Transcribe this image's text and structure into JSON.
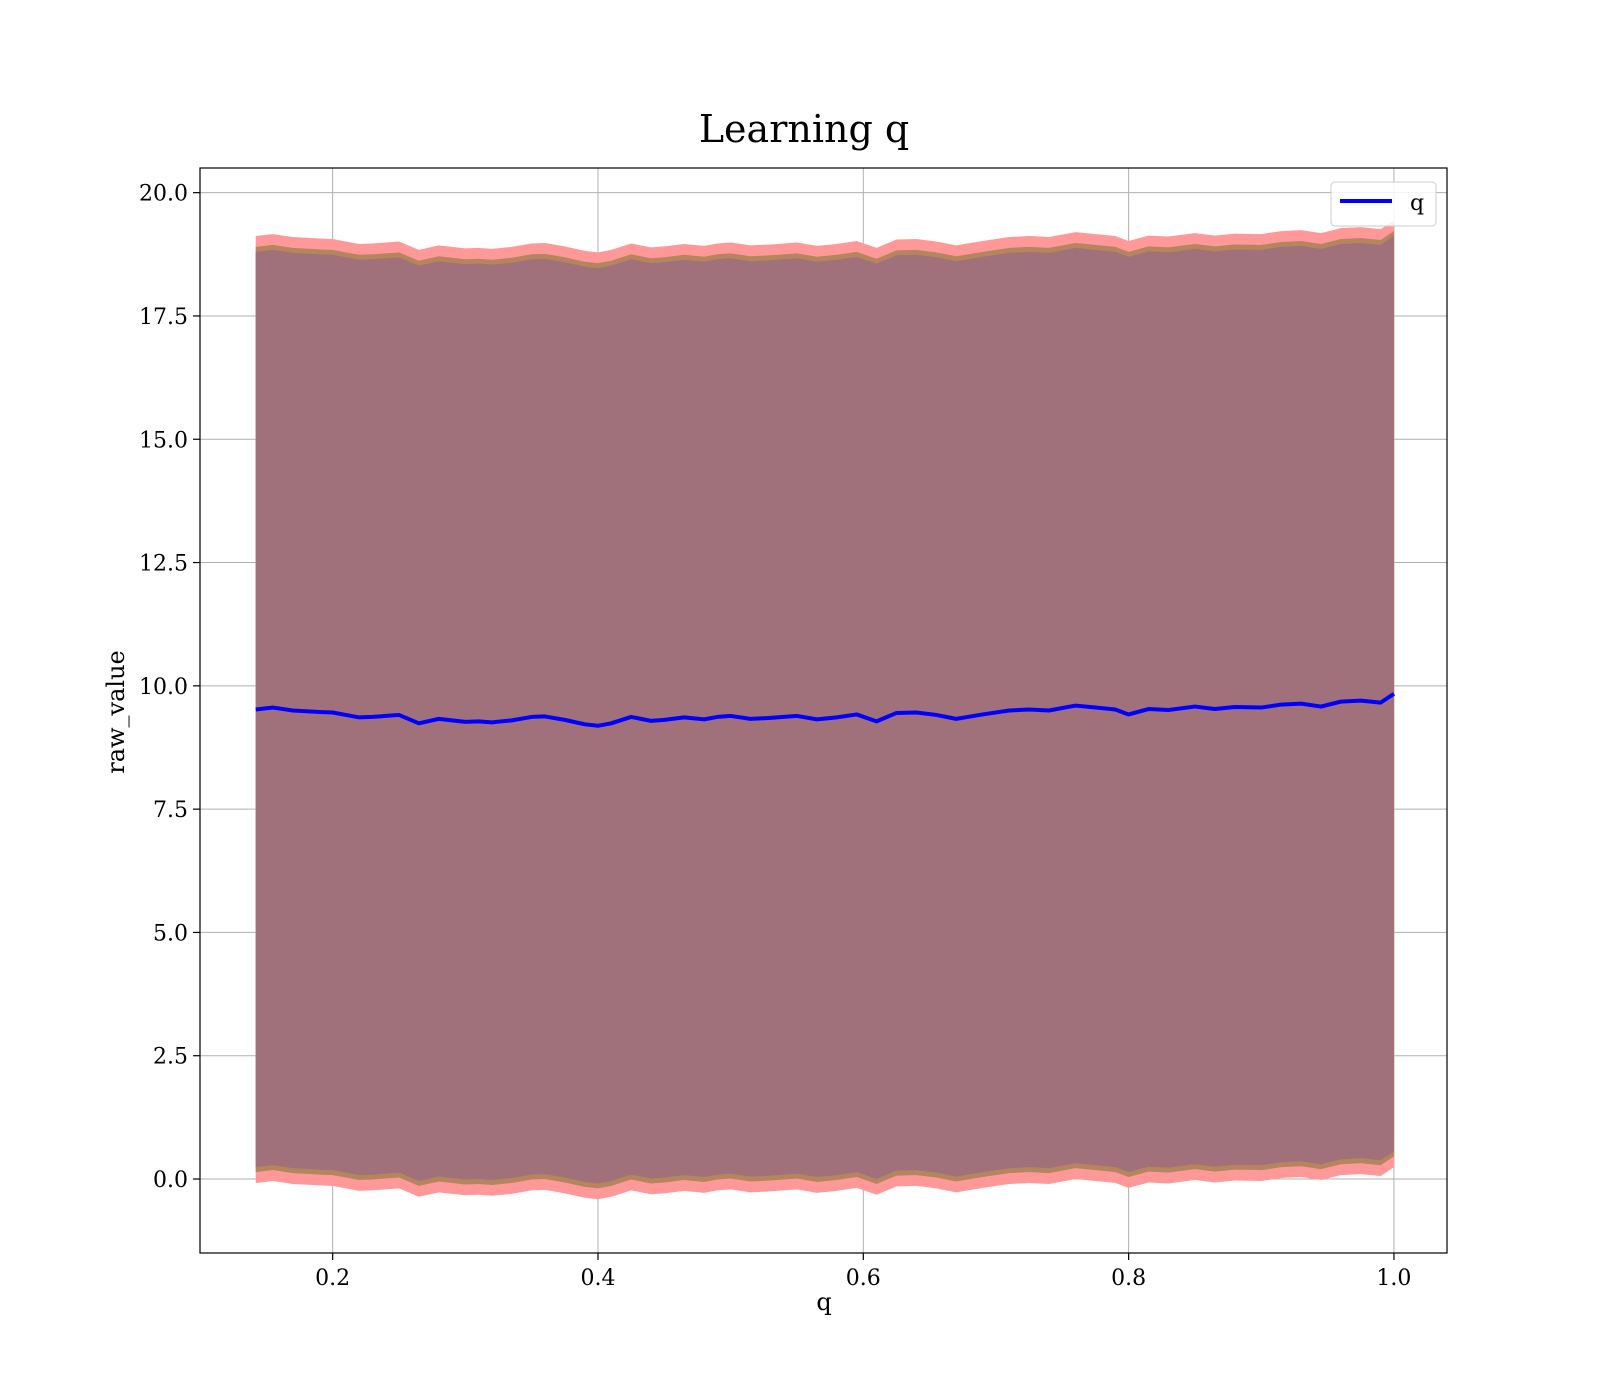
{
  "chart_data": {
    "type": "line",
    "title": "Learning q",
    "xlabel": "q",
    "ylabel": "raw_value",
    "xlim": [
      0.1,
      1.04
    ],
    "ylim": [
      -1.5,
      20.5
    ],
    "xticks": [
      "0.2",
      "0.4",
      "0.6",
      "0.8",
      "1.0"
    ],
    "yticks": [
      "0.0",
      "2.5",
      "5.0",
      "7.5",
      "10.0",
      "12.5",
      "15.0",
      "17.5",
      "20.0"
    ],
    "grid": true,
    "legend": {
      "placement": "top-right",
      "entries": [
        "q"
      ]
    },
    "colors": {
      "line": "#0000ff",
      "outer_band": "#ff9999",
      "inner_band": "#b5855e",
      "core_band": "#a0717a",
      "grid": "#b0b0b0"
    },
    "series": [
      {
        "name": "q",
        "x": [
          0.142,
          0.155,
          0.17,
          0.19,
          0.2,
          0.21,
          0.22,
          0.23,
          0.24,
          0.25,
          0.265,
          0.28,
          0.29,
          0.3,
          0.31,
          0.32,
          0.335,
          0.35,
          0.36,
          0.375,
          0.39,
          0.4,
          0.41,
          0.425,
          0.44,
          0.45,
          0.465,
          0.48,
          0.49,
          0.5,
          0.515,
          0.53,
          0.55,
          0.565,
          0.58,
          0.595,
          0.61,
          0.625,
          0.64,
          0.655,
          0.67,
          0.69,
          0.71,
          0.725,
          0.74,
          0.76,
          0.775,
          0.79,
          0.8,
          0.815,
          0.83,
          0.85,
          0.865,
          0.88,
          0.9,
          0.915,
          0.93,
          0.945,
          0.96,
          0.975,
          0.99,
          1.0
        ],
        "mean": [
          9.52,
          9.56,
          9.5,
          9.47,
          9.46,
          9.41,
          9.36,
          9.37,
          9.39,
          9.41,
          9.24,
          9.33,
          9.3,
          9.27,
          9.28,
          9.26,
          9.3,
          9.37,
          9.38,
          9.31,
          9.22,
          9.19,
          9.24,
          9.37,
          9.29,
          9.31,
          9.36,
          9.32,
          9.37,
          9.39,
          9.33,
          9.35,
          9.39,
          9.32,
          9.36,
          9.42,
          9.28,
          9.45,
          9.46,
          9.41,
          9.33,
          9.42,
          9.5,
          9.52,
          9.5,
          9.6,
          9.56,
          9.52,
          9.42,
          9.53,
          9.51,
          9.58,
          9.53,
          9.57,
          9.56,
          9.62,
          9.64,
          9.58,
          9.68,
          9.7,
          9.66,
          9.84
        ],
        "band_half_widths": {
          "outer": 9.6,
          "inner": 9.38,
          "core": 9.28
        }
      }
    ]
  }
}
